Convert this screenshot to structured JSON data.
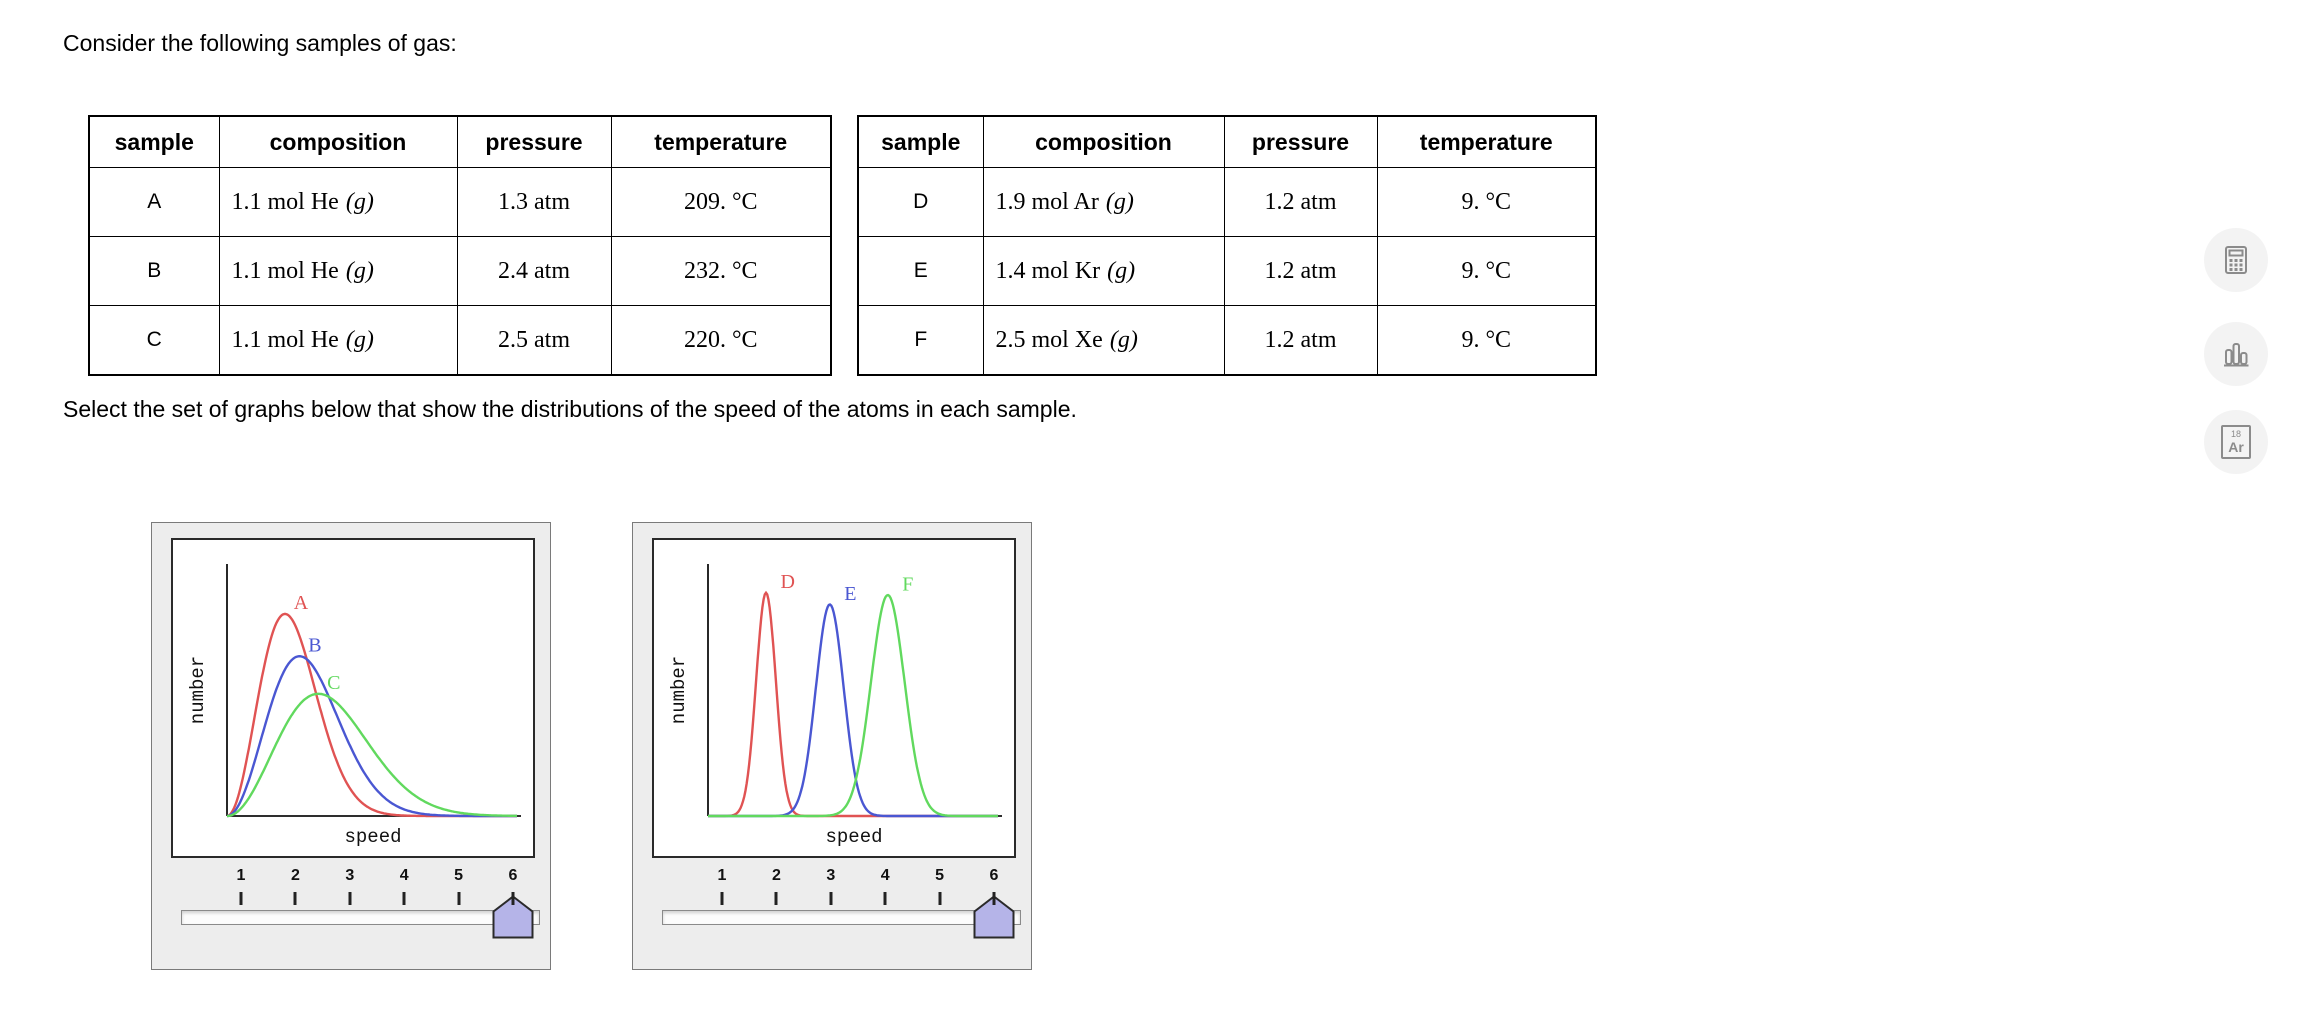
{
  "intro": "Consider the following samples of gas:",
  "prompt": "Select the set of graphs below that show the distributions of the speed of the atoms in each sample.",
  "tables": [
    {
      "headers": [
        "sample",
        "composition",
        "pressure",
        "temperature"
      ],
      "rows": [
        {
          "sample": "A",
          "composition": "1.1 mol He",
          "state": "(g)",
          "pressure": "1.3 atm",
          "temperature": "209. °C"
        },
        {
          "sample": "B",
          "composition": "1.1 mol He",
          "state": "(g)",
          "pressure": "2.4 atm",
          "temperature": "232. °C"
        },
        {
          "sample": "C",
          "composition": "1.1 mol He",
          "state": "(g)",
          "pressure": "2.5 atm",
          "temperature": "220. °C"
        }
      ]
    },
    {
      "headers": [
        "sample",
        "composition",
        "pressure",
        "temperature"
      ],
      "rows": [
        {
          "sample": "D",
          "composition": "1.9 mol Ar",
          "state": "(g)",
          "pressure": "1.2 atm",
          "temperature": "9. °C"
        },
        {
          "sample": "E",
          "composition": "1.4 mol Kr",
          "state": "(g)",
          "pressure": "1.2 atm",
          "temperature": "9. °C"
        },
        {
          "sample": "F",
          "composition": "2.5 mol Xe",
          "state": "(g)",
          "pressure": "1.2 atm",
          "temperature": "9. °C"
        }
      ]
    }
  ],
  "options": [
    {
      "slider_ticks": [
        "1",
        "2",
        "3",
        "4",
        "5",
        "6"
      ]
    },
    {
      "slider_ticks": [
        "1",
        "2",
        "3",
        "4",
        "5",
        "6"
      ]
    }
  ],
  "chart_data": [
    {
      "type": "line",
      "title": "Speed distributions, samples A–C",
      "xlabel": "speed",
      "ylabel": "number",
      "x_range": [
        0,
        1
      ],
      "y_range": [
        0,
        1
      ],
      "series": [
        {
          "name": "A",
          "shape": "maxwell",
          "color": "#e05353",
          "peak": 0.2,
          "height": 0.86
        },
        {
          "name": "B",
          "shape": "maxwell",
          "color": "#4a57d2",
          "peak": 0.25,
          "height": 0.68
        },
        {
          "name": "C",
          "shape": "maxwell",
          "color": "#61d95e",
          "peak": 0.315,
          "height": 0.52
        }
      ]
    },
    {
      "type": "line",
      "title": "Speed distributions, samples D–F",
      "xlabel": "speed",
      "ylabel": "number",
      "x_range": [
        0,
        1
      ],
      "y_range": [
        0,
        1
      ],
      "series": [
        {
          "name": "D",
          "shape": "gauss",
          "color": "#e05353",
          "peak": 0.2,
          "sigma": 0.034,
          "height": 0.95
        },
        {
          "name": "E",
          "shape": "gauss",
          "color": "#4a57d2",
          "peak": 0.42,
          "sigma": 0.048,
          "height": 0.9
        },
        {
          "name": "F",
          "shape": "gauss",
          "color": "#61d95e",
          "peak": 0.62,
          "sigma": 0.058,
          "height": 0.94
        }
      ]
    }
  ],
  "toolbar": {
    "periodic_symbol": "Ar",
    "periodic_number": "18"
  },
  "ui": {
    "slider_handle_color": "#b5b4e8"
  }
}
